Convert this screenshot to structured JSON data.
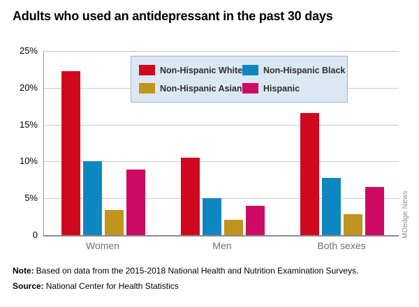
{
  "watermark": "MDedge News",
  "note": {
    "label": "Note:",
    "text": "Based on data from the 2015-2018 National Health and Nutrition Examination Surveys."
  },
  "source": {
    "label": "Source:",
    "text": "National Center for Health Statistics"
  },
  "chart_data": {
    "type": "bar",
    "title": "Adults who used an antidepressant in the past 30 days",
    "categories": [
      "Women",
      "Men",
      "Both sexes"
    ],
    "series": [
      {
        "name": "Non-Hispanic White",
        "color": "#d0081f",
        "values": [
          22.3,
          10.5,
          16.6
        ]
      },
      {
        "name": "Non-Hispanic Black",
        "color": "#0e87c1",
        "values": [
          10.0,
          5.0,
          7.8
        ]
      },
      {
        "name": "Non-Hispanic Asian",
        "color": "#c1931f",
        "values": [
          3.4,
          2.1,
          2.8
        ]
      },
      {
        "name": "Hispanic",
        "color": "#cd0b66",
        "values": [
          8.9,
          4.0,
          6.5
        ]
      }
    ],
    "xlabel": "",
    "ylabel": "",
    "ylim": [
      0,
      25
    ],
    "y_ticks": [
      {
        "value": 0,
        "label": "0"
      },
      {
        "value": 5,
        "label": "5%"
      },
      {
        "value": 10,
        "label": "10%"
      },
      {
        "value": 15,
        "label": "15%"
      },
      {
        "value": 20,
        "label": "20%"
      },
      {
        "value": 25,
        "label": "25%"
      }
    ],
    "grid": true,
    "legend_position": "top-center-inside"
  },
  "style": {
    "grid_color": "#c9c9c9",
    "axis_color": "#8a8a8a",
    "legend_bg": "#dbe8f4",
    "legend_border": "#9db6ca"
  }
}
